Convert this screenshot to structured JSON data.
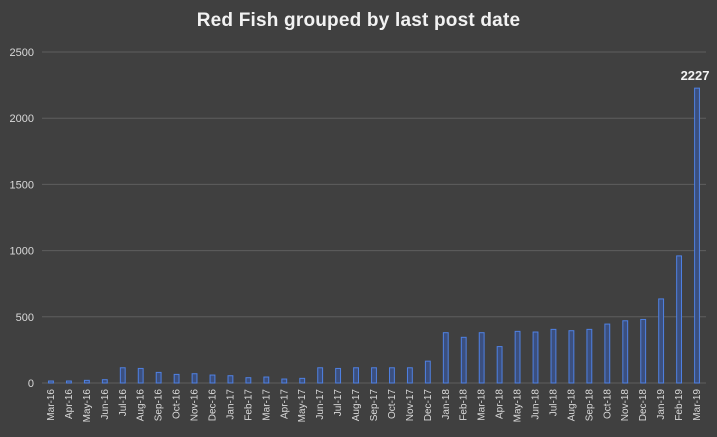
{
  "chart_data": {
    "type": "bar",
    "title": "Red Fish grouped by last post date",
    "xlabel": "",
    "ylabel": "",
    "ylim": [
      0,
      2500
    ],
    "yticks": [
      0,
      500,
      1000,
      1500,
      2000,
      2500
    ],
    "grid": true,
    "categories": [
      "Mar-16",
      "Apr-16",
      "May-16",
      "Jun-16",
      "Jul-16",
      "Aug-16",
      "Sep-16",
      "Oct-16",
      "Nov-16",
      "Dec-16",
      "Jan-17",
      "Feb-17",
      "Mar-17",
      "Apr-17",
      "May-17",
      "Jun-17",
      "Jul-17",
      "Aug-17",
      "Sep-17",
      "Oct-17",
      "Nov-17",
      "Dec-17",
      "Jan-18",
      "Feb-18",
      "Mar-18",
      "Apr-18",
      "May-18",
      "Jun-18",
      "Jul-18",
      "Aug-18",
      "Sep-18",
      "Oct-18",
      "Nov-18",
      "Dec-18",
      "Jan-19",
      "Feb-19",
      "Mar-19"
    ],
    "values": [
      15,
      15,
      20,
      25,
      115,
      110,
      80,
      65,
      70,
      60,
      55,
      40,
      45,
      30,
      35,
      115,
      110,
      115,
      115,
      115,
      115,
      165,
      380,
      345,
      380,
      275,
      390,
      385,
      405,
      395,
      405,
      445,
      470,
      480,
      635,
      960,
      2227
    ],
    "data_labels": [
      {
        "category": "Mar-19",
        "text": "2227"
      }
    ],
    "colors": {
      "background": "#404040",
      "bar_fill": "#3b4f7e",
      "bar_stroke": "#4f81e3",
      "grid": "#5e5e5e",
      "text": "#d9d9d9",
      "title": "#f2f2f2"
    }
  }
}
